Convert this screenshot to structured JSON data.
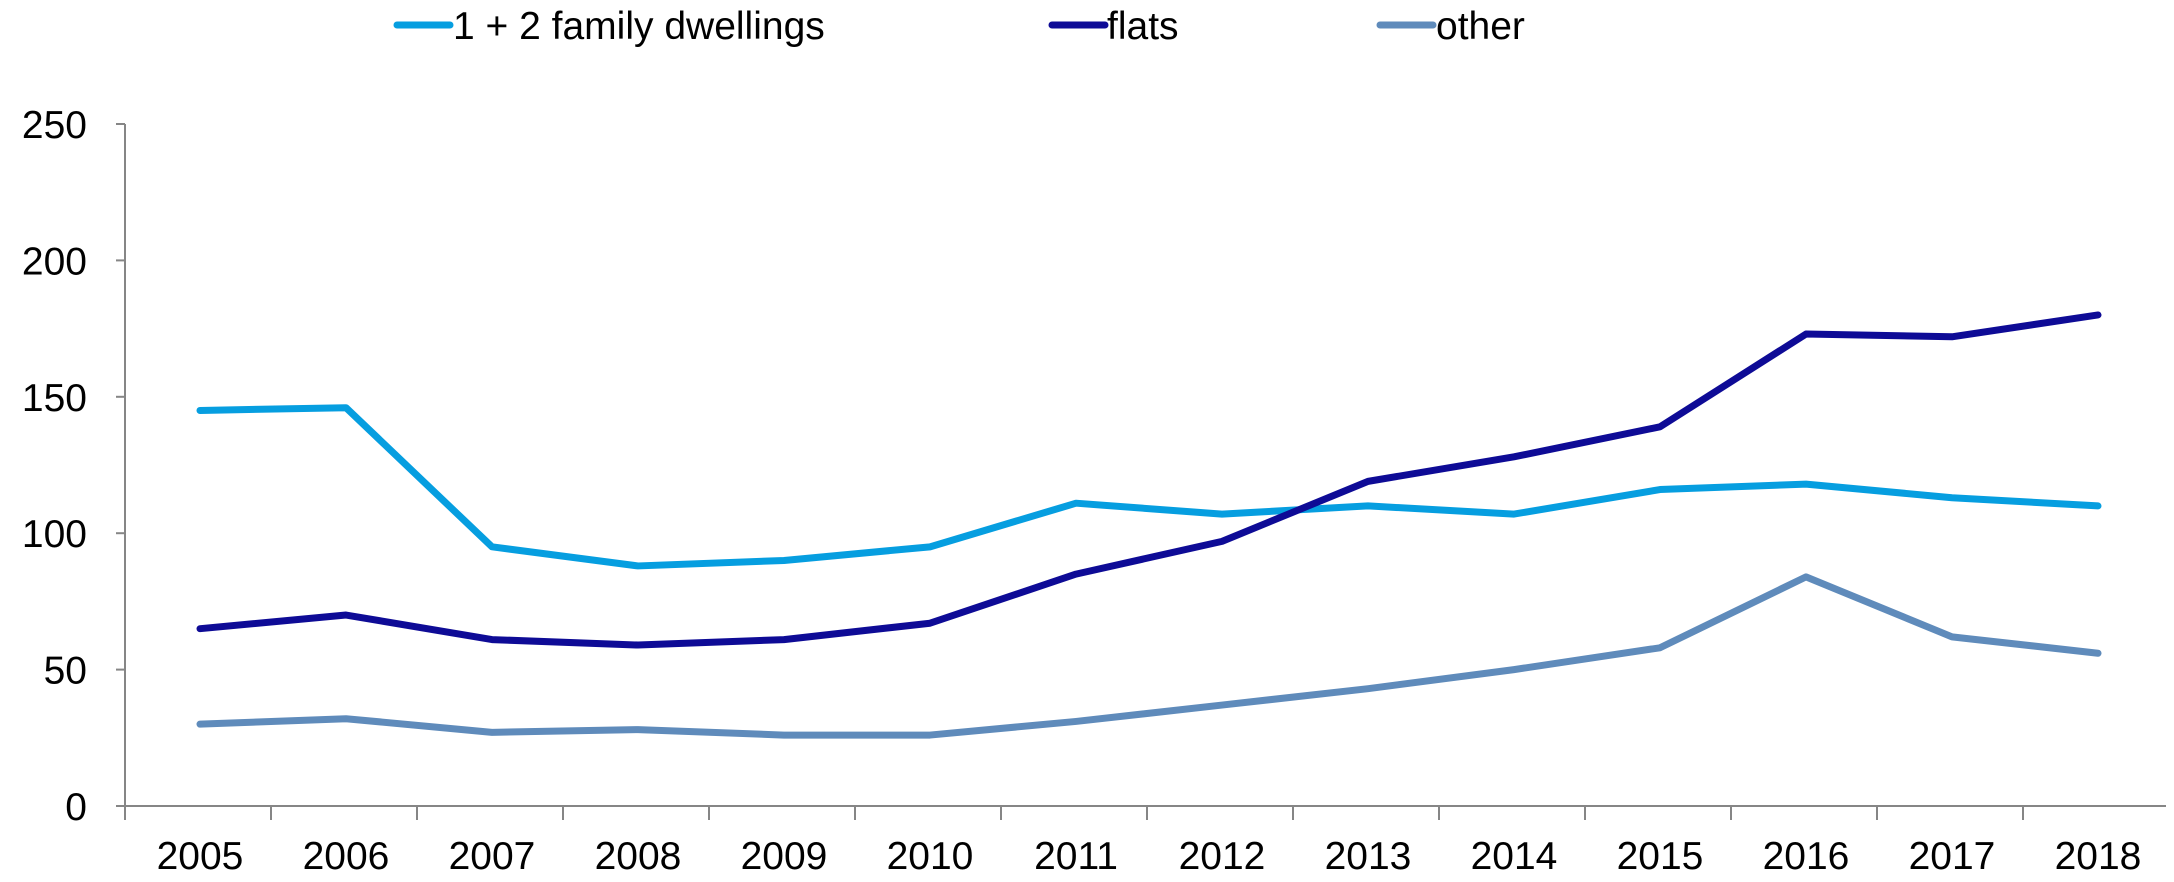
{
  "chart_data": {
    "type": "line",
    "title": "",
    "xlabel": "",
    "ylabel": "",
    "categories": [
      "2005",
      "2006",
      "2007",
      "2008",
      "2009",
      "2010",
      "2011",
      "2012",
      "2013",
      "2014",
      "2015",
      "2016",
      "2017",
      "2018"
    ],
    "ylim": [
      0,
      250
    ],
    "yticks": [
      "0",
      "50",
      "100",
      "150",
      "200",
      "250"
    ],
    "grid": false,
    "legend_position": "top",
    "series": [
      {
        "name": "1 + 2 family dwellings",
        "color": "#069EE0",
        "values": [
          145,
          146,
          95,
          88,
          90,
          95,
          111,
          107,
          110,
          107,
          116,
          118,
          113,
          110
        ]
      },
      {
        "name": "flats",
        "color": "#0E0B96",
        "values": [
          65,
          70,
          61,
          59,
          61,
          67,
          85,
          97,
          119,
          128,
          139,
          173,
          172,
          180
        ]
      },
      {
        "name": "other",
        "color": "#5F8BBB",
        "values": [
          30,
          32,
          27,
          28,
          26,
          26,
          31,
          37,
          43,
          50,
          58,
          84,
          62,
          56
        ]
      }
    ]
  }
}
